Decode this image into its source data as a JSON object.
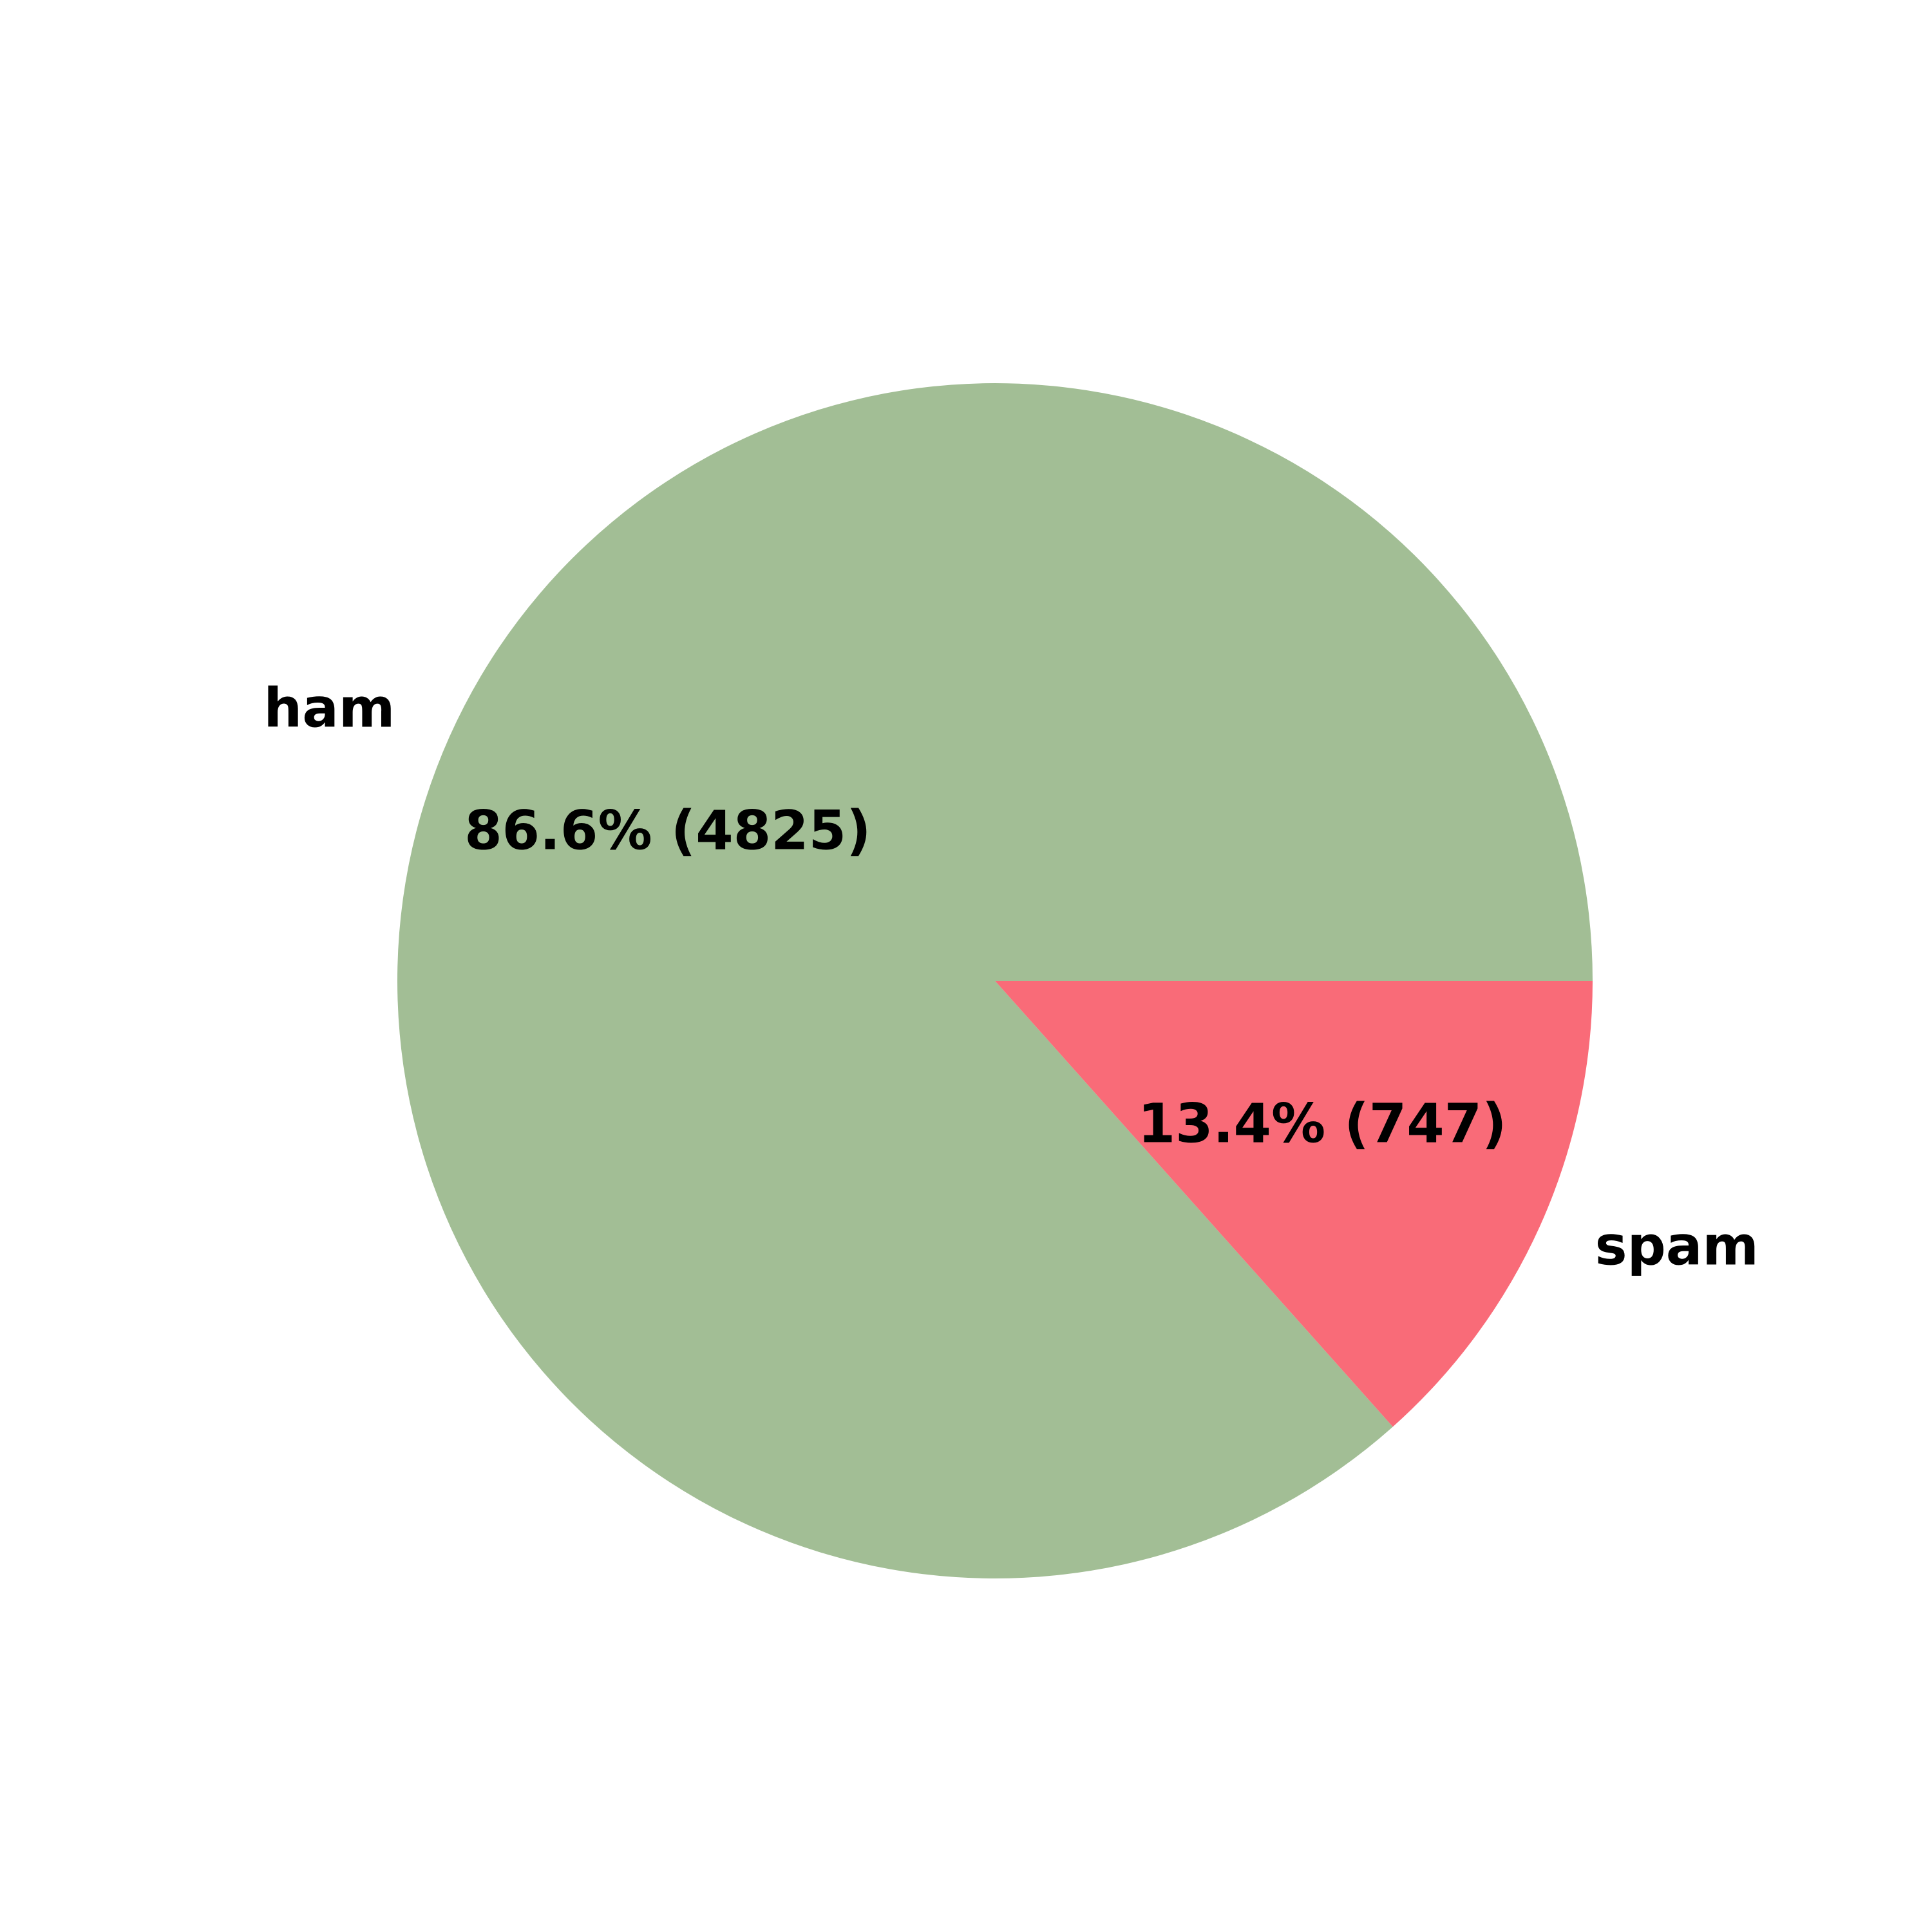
{
  "chart_data": {
    "type": "pie",
    "title": "",
    "start_angle_deg": 0,
    "direction": "clockwise",
    "slices": [
      {
        "label": "ham",
        "value": 4825,
        "percent_label": "86.6% (4825)",
        "color": "#a2be95"
      },
      {
        "label": "spam",
        "value": 747,
        "percent_label": "13.4% (747)",
        "color": "#f96b78"
      }
    ]
  }
}
